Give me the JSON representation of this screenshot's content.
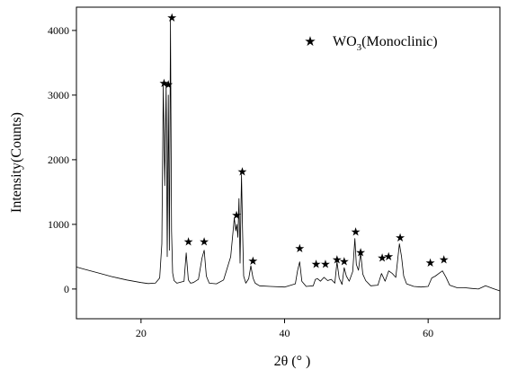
{
  "chart_data": {
    "type": "line",
    "xlabel": "2θ (° )",
    "ylabel": "Intensity(Counts)",
    "xlim": [
      11,
      70
    ],
    "ylim": [
      -460,
      4360
    ],
    "x_ticks": [
      20,
      40,
      60
    ],
    "y_ticks": [
      0,
      1000,
      2000,
      3000,
      4000
    ],
    "grid": false,
    "legend": {
      "position": "top-right",
      "marker": "★",
      "label_main": "WO",
      "label_sub": "3",
      "label_tail": "(Monoclinic)"
    },
    "colors": {
      "line": "#000000",
      "axis": "#000000"
    },
    "series": [
      {
        "x": [
          11,
          12,
          14,
          16,
          18,
          20,
          21,
          22,
          22.6,
          22.9,
          23.1,
          23.3,
          23.5,
          23.65,
          23.8,
          23.95,
          24.1,
          24.25,
          24.4,
          24.6,
          25,
          26,
          26.3,
          26.6,
          26.9,
          27.3,
          28,
          28.5,
          28.8,
          29.1,
          29.5,
          30.5,
          31.5,
          32.5,
          33,
          33.2,
          33.35,
          33.5,
          33.65,
          33.8,
          34,
          34.15,
          34.3,
          34.6,
          35,
          35.3,
          35.6,
          35.9,
          36.5,
          38,
          40,
          41.5,
          41.8,
          42.1,
          42.4,
          43,
          44,
          44.3,
          44.6,
          45,
          45.5,
          46,
          46.5,
          47,
          47.3,
          47.6,
          48,
          48.3,
          48.6,
          49,
          49.5,
          49.8,
          50,
          50.3,
          50.6,
          50.9,
          51.3,
          52,
          53,
          53.5,
          54,
          54.5,
          55,
          55.5,
          56,
          56.3,
          56.6,
          57,
          58,
          59,
          60,
          60.5,
          61,
          61.5,
          62,
          62.5,
          63,
          64,
          65,
          66,
          67,
          68,
          69,
          70
        ],
        "y": [
          340,
          310,
          250,
          190,
          140,
          100,
          85,
          90,
          170,
          700,
          3150,
          1600,
          3150,
          500,
          3000,
          600,
          4150,
          900,
          250,
          130,
          90,
          120,
          560,
          140,
          90,
          100,
          150,
          480,
          600,
          200,
          90,
          80,
          140,
          500,
          1100,
          900,
          1000,
          800,
          1400,
          400,
          1770,
          900,
          200,
          90,
          160,
          360,
          170,
          90,
          50,
          40,
          30,
          80,
          280,
          420,
          120,
          40,
          50,
          150,
          160,
          120,
          180,
          130,
          150,
          90,
          420,
          170,
          70,
          330,
          200,
          120,
          270,
          780,
          380,
          290,
          560,
          230,
          130,
          50,
          60,
          240,
          120,
          280,
          240,
          180,
          700,
          500,
          200,
          80,
          40,
          30,
          40,
          170,
          200,
          240,
          280,
          180,
          60,
          20,
          20,
          10,
          0,
          50,
          10,
          -30
        ]
      }
    ],
    "peak_markers": [
      {
        "x": 23.2,
        "y": 3180
      },
      {
        "x": 23.8,
        "y": 3160
      },
      {
        "x": 24.3,
        "y": 4190
      },
      {
        "x": 26.6,
        "y": 730
      },
      {
        "x": 28.8,
        "y": 730
      },
      {
        "x": 33.3,
        "y": 1140
      },
      {
        "x": 34.1,
        "y": 1810
      },
      {
        "x": 35.6,
        "y": 430
      },
      {
        "x": 42.1,
        "y": 620
      },
      {
        "x": 44.4,
        "y": 380
      },
      {
        "x": 45.7,
        "y": 380
      },
      {
        "x": 47.3,
        "y": 450
      },
      {
        "x": 48.3,
        "y": 420
      },
      {
        "x": 49.9,
        "y": 880
      },
      {
        "x": 50.6,
        "y": 560
      },
      {
        "x": 53.6,
        "y": 480
      },
      {
        "x": 54.5,
        "y": 500
      },
      {
        "x": 56.1,
        "y": 790
      },
      {
        "x": 60.3,
        "y": 400
      },
      {
        "x": 62.2,
        "y": 450
      }
    ]
  }
}
